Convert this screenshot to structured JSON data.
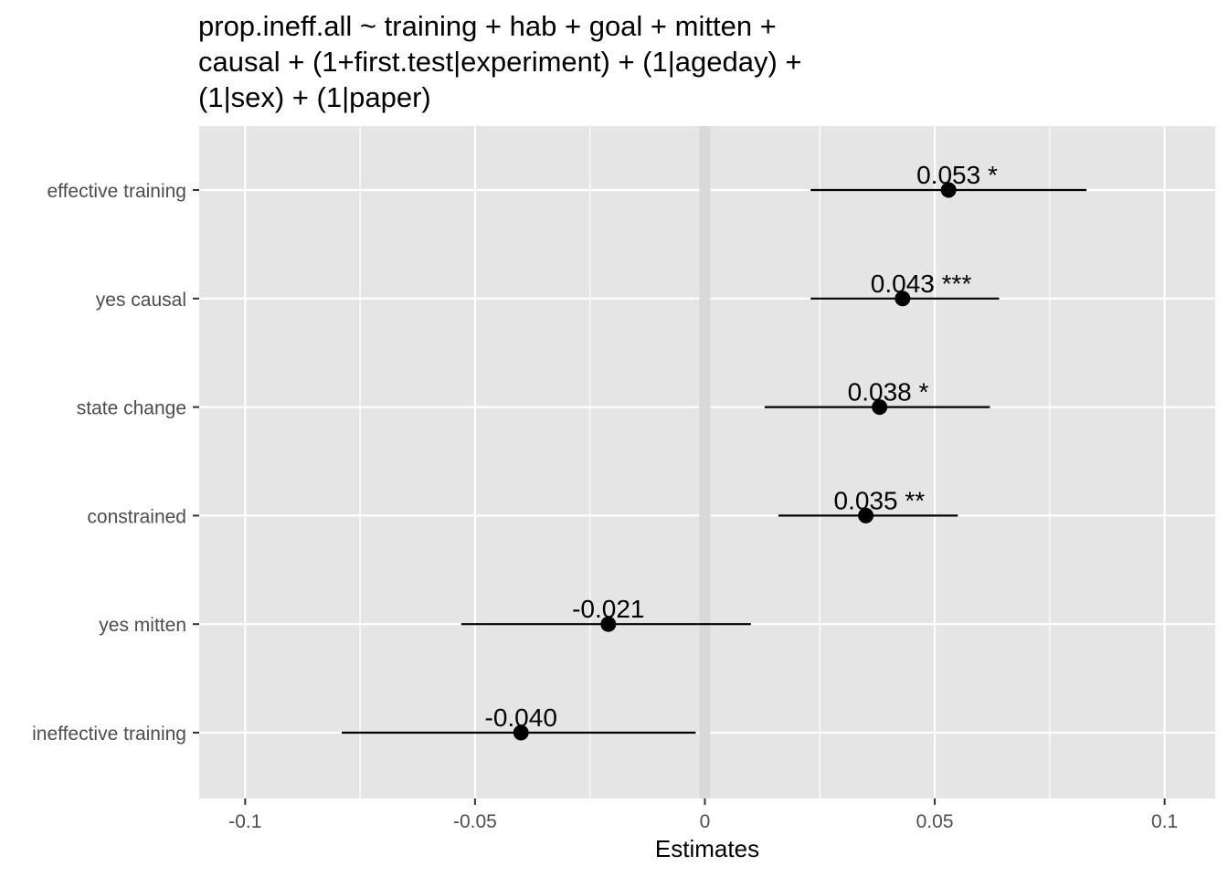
{
  "chart_data": {
    "type": "scatter",
    "subtype": "forest-plot",
    "title_lines": [
      "prop.ineff.all ~ training + hab + goal + mitten +",
      "causal + (1+first.test|experiment) + (1|ageday) +",
      "(1|sex) + (1|paper)"
    ],
    "xlabel": "Estimates",
    "ylabel": "",
    "xlim": [
      -0.11,
      0.111
    ],
    "xticks": [
      -0.1,
      -0.05,
      0,
      0.05,
      0.1
    ],
    "xtick_labels": [
      "-0.1",
      "-0.05",
      "0",
      "0.05",
      "0.1"
    ],
    "categories": [
      "effective training",
      "yes causal",
      "state change",
      "constrained",
      "yes mitten",
      "ineffective training"
    ],
    "estimates": [
      0.053,
      0.043,
      0.038,
      0.035,
      -0.021,
      -0.04
    ],
    "ci_low": [
      0.023,
      0.023,
      0.013,
      0.016,
      -0.053,
      -0.079
    ],
    "ci_high": [
      0.083,
      0.064,
      0.062,
      0.055,
      0.01,
      -0.002
    ],
    "labels": [
      "0.053 *",
      "0.043 ***",
      "0.038 *",
      "0.035 **",
      "-0.021",
      "-0.040"
    ],
    "reference_line": 0,
    "grid": true,
    "panel_background": "#e5e5e5",
    "grid_color": "#ffffff",
    "point_color": "#000000"
  }
}
